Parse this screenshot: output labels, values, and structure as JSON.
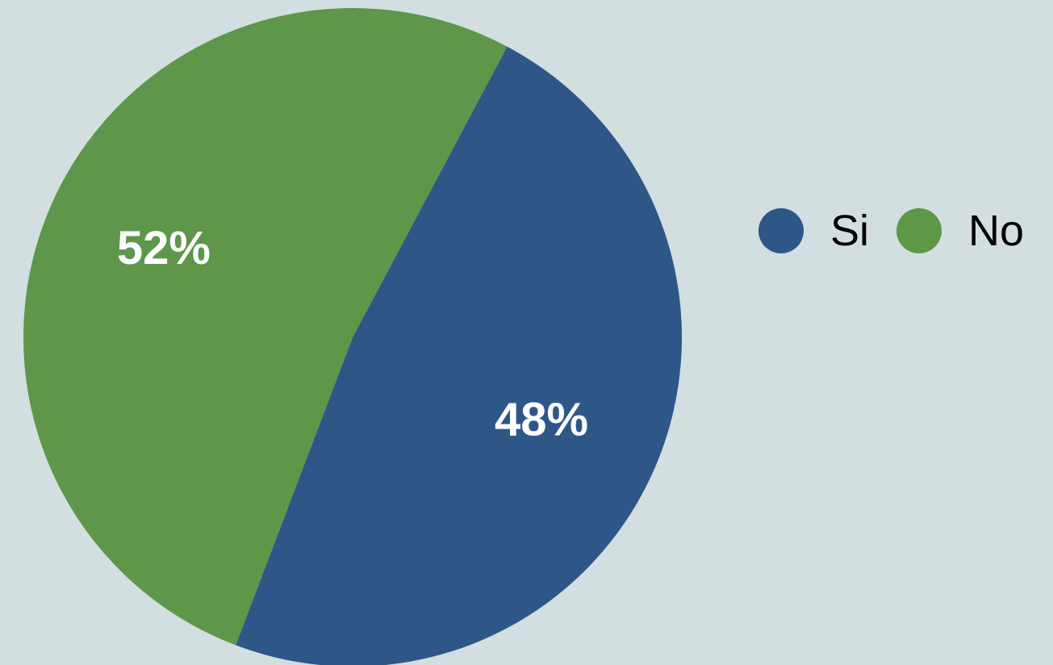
{
  "chart_data": {
    "type": "pie",
    "title": "",
    "legend_position": "right",
    "slices": [
      {
        "name": "Si",
        "value": 48,
        "label": "48%",
        "color": "#2e5788"
      },
      {
        "name": "No",
        "value": 52,
        "label": "52%",
        "color": "#5e964a"
      }
    ]
  },
  "legend": {
    "items": [
      {
        "label": "Si",
        "color": "#2e5788"
      },
      {
        "label": "No",
        "color": "#5e964a"
      }
    ]
  },
  "colors": {
    "background": "#d3dee0"
  }
}
